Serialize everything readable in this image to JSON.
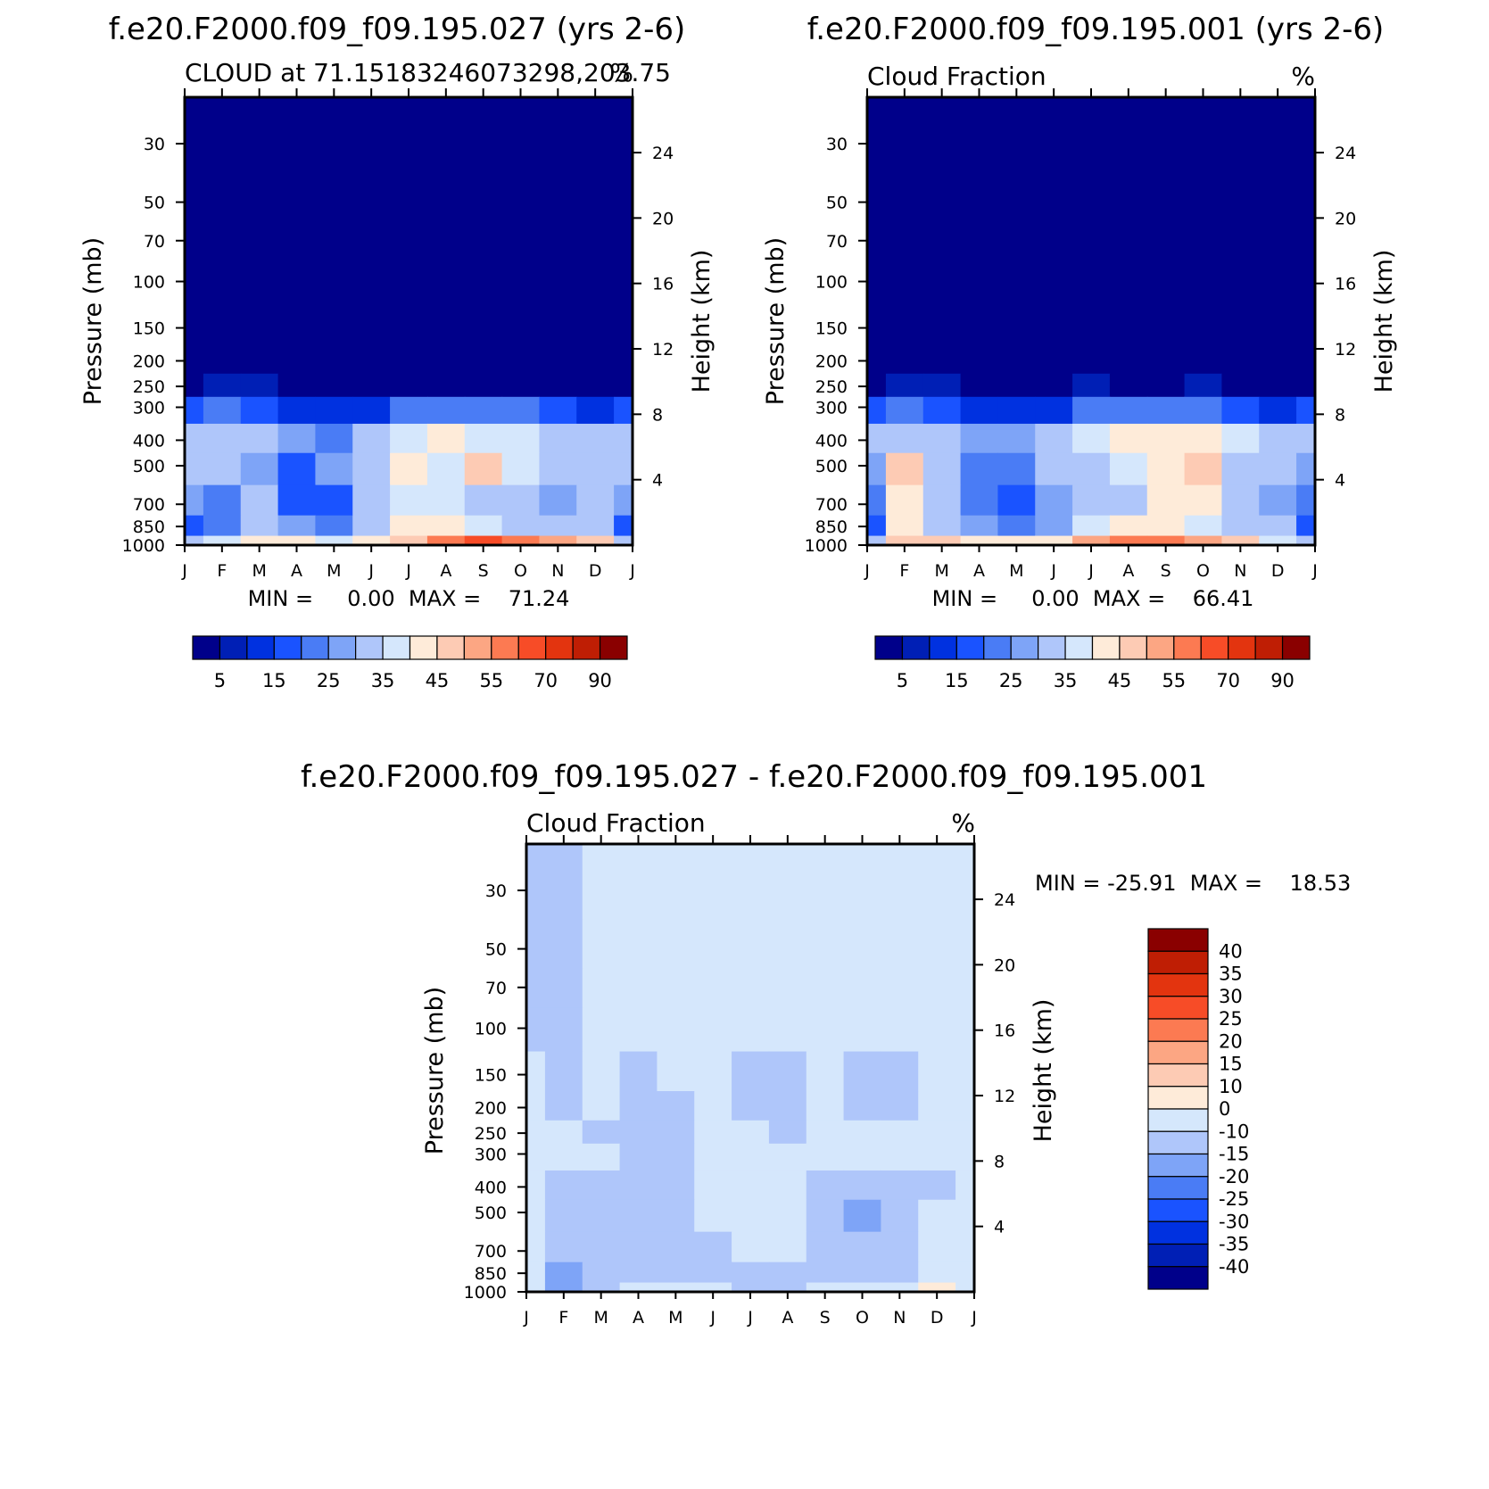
{
  "chart_data": [
    {
      "type": "heatmap",
      "main_title": "f.e20.F2000.f09_f09.195.027 (yrs 2-6)",
      "subtitle_left": "CLOUD at 71.15183246073298,203.75",
      "subtitle_right": "%",
      "ylabel": "Pressure (mb)",
      "ylabel_right": "Height (km)",
      "minmax": "MIN =     0.00  MAX =    71.24",
      "months": [
        "J",
        "F",
        "M",
        "A",
        "M",
        "J",
        "J",
        "A",
        "S",
        "O",
        "N",
        "D",
        "J"
      ],
      "pressure_ticks": [
        30,
        50,
        70,
        100,
        150,
        200,
        250,
        300,
        400,
        500,
        700,
        850,
        1000
      ],
      "height_ticks": [
        24,
        20,
        16,
        12,
        8,
        4
      ],
      "colorbar_labels": [
        "5",
        "15",
        "25",
        "35",
        "45",
        "55",
        "70",
        "90"
      ],
      "levels": [
        0,
        5,
        10,
        15,
        20,
        25,
        30,
        35,
        40,
        45,
        50,
        55,
        60,
        70,
        80,
        90
      ],
      "grid": {
        "rows": [
          [
            0,
            0,
            0,
            0,
            0,
            0,
            0,
            0,
            0,
            0,
            0,
            0,
            0
          ],
          [
            0,
            0,
            0,
            0,
            0,
            0,
            0,
            0,
            0,
            0,
            0,
            0,
            0
          ],
          [
            0,
            0,
            0,
            0,
            0,
            0,
            0,
            0,
            0,
            0,
            0,
            0,
            0
          ],
          [
            0,
            0,
            0,
            0,
            0,
            0,
            0,
            0,
            0,
            0,
            0,
            0,
            0
          ],
          [
            0,
            0,
            0,
            0,
            0,
            0,
            0,
            0,
            0,
            0,
            0,
            0,
            0
          ],
          [
            0,
            0,
            0,
            0,
            0,
            0,
            0,
            0,
            0,
            0,
            0,
            0,
            0
          ],
          [
            3,
            8,
            5,
            0,
            0,
            2,
            3,
            2,
            3,
            3,
            2,
            2,
            3
          ],
          [
            18,
            23,
            18,
            14,
            10,
            12,
            20,
            22,
            22,
            20,
            16,
            14,
            18
          ],
          [
            32,
            33,
            30,
            25,
            22,
            34,
            38,
            42,
            38,
            36,
            34,
            30,
            32
          ],
          [
            30,
            32,
            26,
            18,
            25,
            32,
            42,
            36,
            45,
            36,
            34,
            32,
            30
          ],
          [
            25,
            22,
            30,
            18,
            18,
            30,
            36,
            35,
            32,
            30,
            28,
            30,
            25
          ],
          [
            18,
            20,
            30,
            26,
            24,
            32,
            40,
            42,
            35,
            33,
            33,
            30,
            18
          ],
          [
            32,
            36,
            40,
            40,
            38,
            40,
            48,
            58,
            60,
            55,
            50,
            45,
            32
          ]
        ]
      }
    },
    {
      "type": "heatmap",
      "main_title": "f.e20.F2000.f09_f09.195.001 (yrs 2-6)",
      "subtitle_left": "Cloud Fraction",
      "subtitle_right": "%",
      "ylabel": "Pressure (mb)",
      "ylabel_right": "Height (km)",
      "minmax": "MIN =     0.00  MAX =    66.41",
      "months": [
        "J",
        "F",
        "M",
        "A",
        "M",
        "J",
        "J",
        "A",
        "S",
        "O",
        "N",
        "D",
        "J"
      ],
      "pressure_ticks": [
        30,
        50,
        70,
        100,
        150,
        200,
        250,
        300,
        400,
        500,
        700,
        850,
        1000
      ],
      "height_ticks": [
        24,
        20,
        16,
        12,
        8,
        4
      ],
      "colorbar_labels": [
        "5",
        "15",
        "25",
        "35",
        "45",
        "55",
        "70",
        "90"
      ],
      "levels": [
        0,
        5,
        10,
        15,
        20,
        25,
        30,
        35,
        40,
        45,
        50,
        55,
        60,
        70,
        80,
        90
      ],
      "grid": {
        "rows": [
          [
            0,
            0,
            0,
            0,
            0,
            0,
            0,
            0,
            0,
            0,
            0,
            0,
            0
          ],
          [
            0,
            0,
            0,
            0,
            0,
            0,
            0,
            0,
            0,
            0,
            0,
            0,
            0
          ],
          [
            0,
            0,
            0,
            0,
            0,
            0,
            0,
            0,
            0,
            0,
            0,
            0,
            0
          ],
          [
            0,
            0,
            0,
            0,
            0,
            0,
            0,
            0,
            0,
            0,
            0,
            0,
            0
          ],
          [
            0,
            0,
            0,
            0,
            0,
            0,
            0,
            0,
            0,
            0,
            0,
            0,
            0
          ],
          [
            0,
            0,
            0,
            0,
            0,
            0,
            0,
            0,
            0,
            0,
            0,
            0,
            0
          ],
          [
            3,
            8,
            5,
            0,
            0,
            2,
            5,
            2,
            3,
            5,
            2,
            2,
            3
          ],
          [
            18,
            23,
            18,
            14,
            10,
            12,
            20,
            22,
            22,
            20,
            16,
            14,
            18
          ],
          [
            30,
            32,
            30,
            28,
            26,
            32,
            35,
            40,
            42,
            42,
            36,
            30,
            30
          ],
          [
            28,
            45,
            30,
            22,
            22,
            30,
            34,
            36,
            40,
            46,
            34,
            30,
            28
          ],
          [
            22,
            40,
            30,
            22,
            18,
            26,
            32,
            34,
            40,
            40,
            30,
            28,
            22
          ],
          [
            18,
            42,
            32,
            26,
            20,
            28,
            38,
            42,
            40,
            38,
            32,
            30,
            18
          ],
          [
            32,
            48,
            48,
            42,
            40,
            40,
            50,
            55,
            56,
            50,
            45,
            38,
            32
          ]
        ]
      }
    },
    {
      "type": "heatmap",
      "main_title": "f.e20.F2000.f09_f09.195.027 - f.e20.F2000.f09_f09.195.001",
      "subtitle_left": "Cloud Fraction",
      "subtitle_right": "%",
      "ylabel": "Pressure (mb)",
      "ylabel_right": "Height (km)",
      "minmax": "MIN = -25.91  MAX =    18.53",
      "months": [
        "J",
        "F",
        "M",
        "A",
        "M",
        "J",
        "J",
        "A",
        "S",
        "O",
        "N",
        "D",
        "J"
      ],
      "pressure_ticks": [
        30,
        50,
        70,
        100,
        150,
        200,
        250,
        300,
        400,
        500,
        700,
        850,
        1000
      ],
      "height_ticks": [
        24,
        20,
        16,
        12,
        8,
        4
      ],
      "colorbar_labels": [
        "40",
        "35",
        "30",
        "25",
        "20",
        "15",
        "10",
        "0",
        "-10",
        "-15",
        "-20",
        "-25",
        "-30",
        "-35",
        "-40"
      ],
      "levels": [
        -40,
        -35,
        -30,
        -25,
        -20,
        -15,
        -10,
        0,
        10,
        15,
        20,
        25,
        30,
        35,
        40
      ],
      "grid": {
        "rows": [
          [
            -3,
            -3,
            3,
            3,
            3,
            3,
            3,
            3,
            3,
            3,
            3,
            3,
            3
          ],
          [
            -3,
            -3,
            3,
            3,
            3,
            3,
            3,
            3,
            3,
            3,
            3,
            3,
            3
          ],
          [
            -3,
            -3,
            3,
            3,
            3,
            3,
            3,
            3,
            3,
            3,
            3,
            3,
            3
          ],
          [
            -3,
            -3,
            3,
            3,
            3,
            3,
            3,
            3,
            3,
            3,
            3,
            3,
            3
          ],
          [
            3,
            -3,
            3,
            -3,
            3,
            3,
            -3,
            -3,
            3,
            -3,
            -3,
            3,
            3
          ],
          [
            3,
            -3,
            3,
            -3,
            -3,
            3,
            -3,
            -3,
            3,
            -3,
            -3,
            3,
            3
          ],
          [
            3,
            3,
            -3,
            -3,
            -3,
            3,
            3,
            -3,
            3,
            3,
            3,
            3,
            3
          ],
          [
            3,
            3,
            3,
            -3,
            -3,
            3,
            3,
            3,
            3,
            3,
            3,
            3,
            3
          ],
          [
            3,
            -3,
            -3,
            -3,
            -3,
            3,
            3,
            3,
            -3,
            -3,
            -3,
            -3,
            3
          ],
          [
            3,
            -3,
            -3,
            -3,
            -3,
            3,
            3,
            3,
            -3,
            -12,
            -3,
            3,
            3
          ],
          [
            3,
            -10,
            -3,
            -3,
            -3,
            -3,
            3,
            3,
            -3,
            -3,
            -3,
            3,
            3
          ],
          [
            3,
            -12,
            -3,
            -3,
            -3,
            -3,
            -3,
            -3,
            -3,
            -3,
            -3,
            3,
            3
          ],
          [
            3,
            -15,
            -3,
            3,
            3,
            3,
            -3,
            -3,
            3,
            3,
            3,
            12,
            3
          ]
        ]
      }
    }
  ],
  "colors": {
    "abs": [
      "#00008a",
      "#001fb5",
      "#0031e0",
      "#1a53ff",
      "#4a7cf5",
      "#7ea4f7",
      "#afc6fa",
      "#d5e7fc",
      "#feebd9",
      "#fdcbb4",
      "#fca683",
      "#fc7a52",
      "#f74c27",
      "#e3340f",
      "#bf1e04",
      "#8a0000"
    ],
    "diff": [
      "#00008a",
      "#001fb5",
      "#0031e0",
      "#1a53ff",
      "#4a7cf5",
      "#7ea4f7",
      "#afc6fa",
      "#d5e7fc",
      "#feebd9",
      "#fdcbb4",
      "#fca683",
      "#fc7a52",
      "#f74c27",
      "#e3340f",
      "#bf1e04",
      "#8a0000"
    ]
  }
}
